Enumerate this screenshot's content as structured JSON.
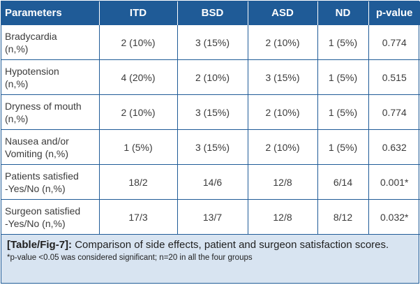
{
  "table": {
    "headers": [
      "Parameters",
      "ITD",
      "BSD",
      "ASD",
      "ND",
      "p-value"
    ],
    "rows": [
      {
        "param_line1": "Bradycardia",
        "param_line2": "(n,%)",
        "values": [
          "2 (10%)",
          "3 (15%)",
          "2 (10%)",
          "1 (5%)",
          "0.774"
        ]
      },
      {
        "param_line1": "Hypotension",
        "param_line2": "(n,%)",
        "values": [
          "4 (20%)",
          "2 (10%)",
          "3 (15%)",
          "1 (5%)",
          "0.515"
        ]
      },
      {
        "param_line1": "Dryness of mouth",
        "param_line2": "(n,%)",
        "values": [
          "2 (10%)",
          "3 (15%)",
          "2 (10%)",
          "1 (5%)",
          "0.774"
        ]
      },
      {
        "param_line1": "Nausea and/or",
        "param_line2": "Vomiting (n,%)",
        "values": [
          "1 (5%)",
          "3 (15%)",
          "2 (10%)",
          "1 (5%)",
          "0.632"
        ]
      },
      {
        "param_line1": "Patients satisfied",
        "param_line2": "-Yes/No (n,%)",
        "values": [
          "18/2",
          "14/6",
          "12/8",
          "6/14",
          "0.001*"
        ]
      },
      {
        "param_line1": "Surgeon satisfied",
        "param_line2": "-Yes/No (n,%)",
        "values": [
          "17/3",
          "13/7",
          "12/8",
          "8/12",
          "0.032*"
        ]
      }
    ]
  },
  "caption": {
    "tag": "[Table/Fig-7]:",
    "text": " Comparison of side effects, patient and surgeon satisfaction scores.",
    "note": "*p-value <0.05 was considered significant; n=20 in all the four groups"
  },
  "colors": {
    "header_bg": "#1f5b97",
    "caption_bg": "#d8e4f1"
  }
}
